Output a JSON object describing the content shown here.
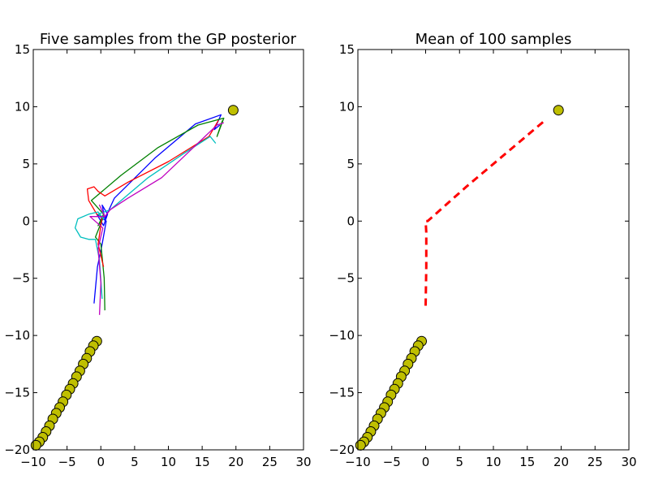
{
  "colors": {
    "background": "#ffffff",
    "axes_frame": "#000000",
    "data_points_fill": "#bfbf00",
    "data_points_edge": "#000000",
    "mean_line": "#ff0000",
    "sample_colors": [
      "#0000ff",
      "#008000",
      "#ff0000",
      "#00bfbf",
      "#bf00bf"
    ]
  },
  "chart_data": [
    {
      "type": "line",
      "title": "Five samples from the GP posterior",
      "xlabel": "",
      "ylabel": "",
      "xlim": [
        -10,
        30
      ],
      "ylim": [
        -20,
        15
      ],
      "xticks": [
        -10,
        -5,
        0,
        5,
        10,
        15,
        20,
        25,
        30
      ],
      "yticks": [
        -20,
        -15,
        -10,
        -5,
        0,
        5,
        10,
        15
      ],
      "xtick_labels": [
        "−10",
        "−5",
        "0",
        "5",
        "10",
        "15",
        "20",
        "25",
        "30"
      ],
      "ytick_labels": [
        "−20",
        "−15",
        "−10",
        "−5",
        "0",
        "5",
        "10",
        "15"
      ],
      "grid": false,
      "observed_points": {
        "marker": "circle",
        "x": [
          19.6,
          -0.6,
          -1.1,
          -1.6,
          -2.1,
          -2.6,
          -3.1,
          -3.6,
          -4.1,
          -4.6,
          -5.1,
          -5.6,
          -6.1,
          -6.6,
          -7.1,
          -7.6,
          -8.1,
          -8.6,
          -9.1,
          -9.6
        ],
        "y": [
          9.7,
          -10.5,
          -10.9,
          -11.4,
          -12.0,
          -12.5,
          -13.1,
          -13.6,
          -14.2,
          -14.7,
          -15.2,
          -15.8,
          -16.3,
          -16.8,
          -17.3,
          -17.9,
          -18.4,
          -18.9,
          -19.3,
          -19.6
        ]
      },
      "series": [
        {
          "values_x": [
            -1.0,
            -0.5,
            0.2,
            0.8,
            -0.6,
            0.4,
            1.0,
            0.2,
            0.6,
            2.0,
            8.0,
            14.0,
            17.8,
            16.8,
            17.6
          ],
          "values_y": [
            -7.2,
            -4.0,
            -2.0,
            0.0,
            0.6,
            -0.4,
            0.6,
            1.4,
            0.2,
            2.0,
            5.5,
            8.5,
            9.3,
            8.0,
            8.4
          ]
        },
        {
          "values_x": [
            0.6,
            0.5,
            0.0,
            -0.8,
            0.4,
            -0.4,
            0.4,
            -1.4,
            3.0,
            8.4,
            14.4,
            18.2,
            17.2,
            18.0
          ],
          "values_y": [
            -7.8,
            -5.0,
            -2.0,
            -1.4,
            0.4,
            -0.4,
            0.6,
            1.8,
            4.0,
            6.4,
            8.4,
            9.0,
            7.4,
            8.8
          ]
        },
        {
          "values_x": [
            0.4,
            -0.4,
            0.2,
            -0.6,
            -1.8,
            -2.0,
            -1.0,
            -0.4,
            0.6,
            4.0,
            10.0,
            16.0,
            17.4
          ],
          "values_y": [
            -4.0,
            -2.0,
            0.4,
            0.6,
            1.8,
            2.8,
            3.0,
            2.6,
            2.2,
            3.4,
            5.2,
            7.4,
            8.8
          ]
        },
        {
          "values_x": [
            0.2,
            -0.2,
            -0.8,
            -1.8,
            -3.0,
            -3.8,
            -3.4,
            -1.8,
            -0.4,
            0.4,
            -0.4,
            1.4,
            7.0,
            12.0,
            16.2,
            17.0
          ],
          "values_y": [
            -6.8,
            -3.4,
            -1.6,
            -1.6,
            -1.4,
            -0.6,
            0.2,
            0.6,
            0.8,
            0.2,
            0.6,
            1.0,
            3.8,
            5.8,
            7.4,
            6.8
          ]
        },
        {
          "values_x": [
            -0.2,
            0.0,
            -0.4,
            0.3,
            -1.6,
            0.6,
            -0.2,
            0.6,
            1.4,
            4.0,
            9.0,
            14.0,
            17.2,
            18.2
          ],
          "values_y": [
            -8.2,
            -5.4,
            -2.4,
            -0.6,
            0.4,
            0.4,
            1.4,
            0.4,
            1.0,
            2.0,
            3.8,
            6.6,
            8.4,
            8.6
          ]
        }
      ]
    },
    {
      "type": "line",
      "title": "Mean of 100 samples",
      "xlabel": "",
      "ylabel": "",
      "xlim": [
        -10,
        30
      ],
      "ylim": [
        -20,
        15
      ],
      "xticks": [
        -10,
        -5,
        0,
        5,
        10,
        15,
        20,
        25,
        30
      ],
      "yticks": [
        -20,
        -15,
        -10,
        -5,
        0,
        5,
        10,
        15
      ],
      "xtick_labels": [
        "−10",
        "−5",
        "0",
        "5",
        "10",
        "15",
        "20",
        "25",
        "30"
      ],
      "ytick_labels": [
        "−20",
        "−15",
        "−10",
        "−5",
        "0",
        "5",
        "10",
        "15"
      ],
      "grid": false,
      "observed_points": {
        "marker": "circle",
        "x": [
          19.6,
          -0.6,
          -1.1,
          -1.6,
          -2.1,
          -2.6,
          -3.1,
          -3.6,
          -4.1,
          -4.6,
          -5.1,
          -5.6,
          -6.1,
          -6.6,
          -7.1,
          -7.6,
          -8.1,
          -8.6,
          -9.1,
          -9.6
        ],
        "y": [
          9.7,
          -10.5,
          -10.9,
          -11.4,
          -12.0,
          -12.5,
          -13.1,
          -13.6,
          -14.2,
          -14.7,
          -15.2,
          -15.8,
          -16.3,
          -16.8,
          -17.3,
          -17.9,
          -18.4,
          -18.9,
          -19.3,
          -19.6
        ]
      },
      "series": [
        {
          "line_style": "dashed",
          "values_x": [
            0.0,
            0.1,
            0.1,
            0.0,
            0.3,
            6.0,
            12.0,
            17.6
          ],
          "values_y": [
            -7.4,
            -4.0,
            -1.0,
            0.0,
            0.0,
            3.0,
            6.0,
            8.8
          ]
        }
      ]
    }
  ]
}
